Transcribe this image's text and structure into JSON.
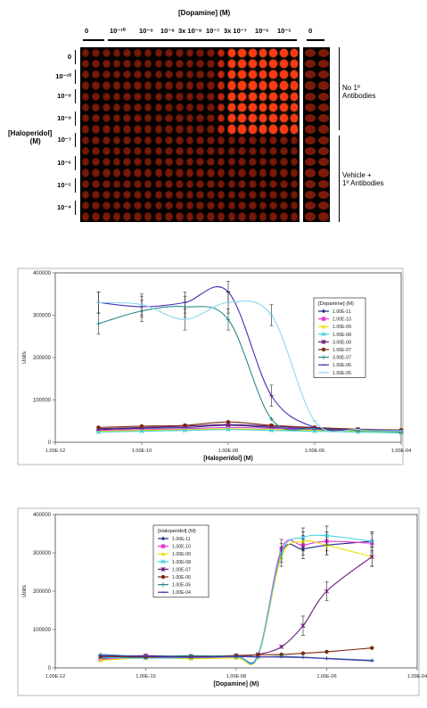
{
  "plate": {
    "title": "[Dopamine] (M)",
    "column_labels": [
      "0",
      "10⁻¹⁰",
      "10⁻⁹",
      "10⁻⁸",
      "3x 10⁻⁸",
      "10⁻⁷",
      "3x 10⁻⁷",
      "10⁻⁶",
      "10⁻⁵",
      "0"
    ],
    "row_axis_label_line1": "[Haloperidol]",
    "row_axis_label_line2": "(M)",
    "row_labels": [
      "0",
      "10⁻¹⁰",
      "10⁻⁹",
      "10⁻⁸",
      "10⁻⁷",
      "10⁻⁶",
      "10⁻⁵",
      "10⁻⁴"
    ],
    "group_top_line1": "No 1º",
    "group_top_line2": "Antibodies",
    "group_bottom_line1": "Vehicle +",
    "group_bottom_line2": "1º Antibodies",
    "colors": {
      "dim_well": "#7a1a08",
      "bright_well": "#ff3a12",
      "plate_bg": "#000000"
    }
  },
  "chart_data": [
    {
      "type": "line",
      "xlabel": "[Haloperidol] (M)",
      "ylabel": "Units",
      "x_scale": "log",
      "xlim": [
        1e-12,
        0.0001
      ],
      "ylim": [
        0,
        400000
      ],
      "x_tick_labels": [
        "1.00E-12",
        "1.00E-10",
        "1.00E-08",
        "1.00E-06",
        "1.00E-04"
      ],
      "y_tick_labels": [
        "0",
        "100000",
        "200000",
        "300000",
        "400000"
      ],
      "legend_title": "[Dopamine] (M)",
      "legend_position": "right",
      "x": [
        1e-11,
        1e-10,
        1e-09,
        1e-08,
        1e-07,
        1e-06,
        1e-05,
        0.0001
      ],
      "series": [
        {
          "name": "1.00E-11",
          "color": "#1f2a8a",
          "marker": "diamond",
          "values": [
            30000,
            33000,
            35000,
            40000,
            35000,
            32000,
            30000,
            28000
          ]
        },
        {
          "name": "1.00E-10",
          "color": "#e23ad8",
          "marker": "square",
          "values": [
            28000,
            30000,
            32000,
            35000,
            33000,
            30000,
            28000,
            26000
          ]
        },
        {
          "name": "1.00E-09",
          "color": "#e8e000",
          "marker": "triangle",
          "values": [
            26000,
            28000,
            30000,
            32000,
            30000,
            28000,
            26000,
            24000
          ]
        },
        {
          "name": "1.00E-08",
          "color": "#3fd0e0",
          "marker": "x",
          "values": [
            24000,
            26000,
            28000,
            30000,
            28000,
            26000,
            24000,
            22000
          ]
        },
        {
          "name": "3.00E-08",
          "color": "#6a1a7a",
          "marker": "star",
          "values": [
            32000,
            35000,
            38000,
            42000,
            38000,
            34000,
            30000,
            27000
          ]
        },
        {
          "name": "1.00E-07",
          "color": "#7a2a10",
          "marker": "circle",
          "values": [
            35000,
            38000,
            40000,
            48000,
            40000,
            35000,
            31000,
            29000
          ]
        },
        {
          "name": "3.00E-07",
          "color": "#2a8a8a",
          "marker": "plus",
          "values": [
            280000,
            310000,
            320000,
            290000,
            55000,
            32000,
            28000,
            25000
          ]
        },
        {
          "name": "1.00E-06",
          "color": "#4a2ab0",
          "marker": "dash",
          "values": [
            330000,
            320000,
            330000,
            355000,
            110000,
            35000,
            30000,
            28000
          ]
        },
        {
          "name": "1.00E-05",
          "color": "#8ad8f0",
          "marker": "dash",
          "values": [
            330000,
            325000,
            290000,
            330000,
            300000,
            50000,
            30000,
            27000
          ]
        }
      ]
    },
    {
      "type": "line",
      "xlabel": "[Dopamine] (M)",
      "ylabel": "Units",
      "x_scale": "log",
      "xlim": [
        1e-12,
        0.0001
      ],
      "ylim": [
        0,
        400000
      ],
      "x_tick_labels": [
        "1.00E-12",
        "1.00E-10",
        "1.00E-08",
        "1.00E-06",
        "1.00E-04"
      ],
      "y_tick_labels": [
        "0",
        "100000",
        "200000",
        "300000",
        "400000"
      ],
      "legend_title": "[Haloperidol] (M)",
      "legend_position": "left",
      "x": [
        1e-11,
        1e-10,
        1e-09,
        1e-08,
        3e-08,
        1e-07,
        3e-07,
        1e-06,
        1e-05
      ],
      "series": [
        {
          "name": "1.00E-11",
          "color": "#1f2a8a",
          "marker": "diamond",
          "values": [
            25000,
            30000,
            28000,
            30000,
            32000,
            300000,
            310000,
            320000,
            330000
          ]
        },
        {
          "name": "1.00E-10",
          "color": "#e23ad8",
          "marker": "square",
          "values": [
            22000,
            28000,
            26000,
            28000,
            30000,
            310000,
            320000,
            330000,
            325000
          ]
        },
        {
          "name": "1.00E-09",
          "color": "#e8e000",
          "marker": "triangle",
          "values": [
            20000,
            26000,
            24000,
            26000,
            28000,
            290000,
            330000,
            320000,
            290000
          ]
        },
        {
          "name": "1.00E-08",
          "color": "#3fd0e0",
          "marker": "x",
          "values": [
            28000,
            25000,
            27000,
            29000,
            30000,
            300000,
            340000,
            345000,
            330000
          ]
        },
        {
          "name": "1.00E-07",
          "color": "#6a1a7a",
          "marker": "star",
          "values": [
            30000,
            32000,
            30000,
            32000,
            35000,
            55000,
            110000,
            200000,
            290000
          ]
        },
        {
          "name": "1.00E-06",
          "color": "#7a2a10",
          "marker": "circle",
          "values": [
            30000,
            28000,
            30000,
            32000,
            34000,
            35000,
            38000,
            42000,
            52000
          ]
        },
        {
          "name": "1.00E-05",
          "color": "#2a8a8a",
          "marker": "plus",
          "values": [
            35000,
            30000,
            32000,
            30000,
            28000,
            30000,
            28000,
            25000,
            20000
          ]
        },
        {
          "name": "1.00E-04",
          "color": "#4a2ab0",
          "marker": "dash",
          "values": [
            32000,
            30000,
            28000,
            30000,
            29000,
            28000,
            27000,
            24000,
            18000
          ]
        }
      ]
    }
  ]
}
